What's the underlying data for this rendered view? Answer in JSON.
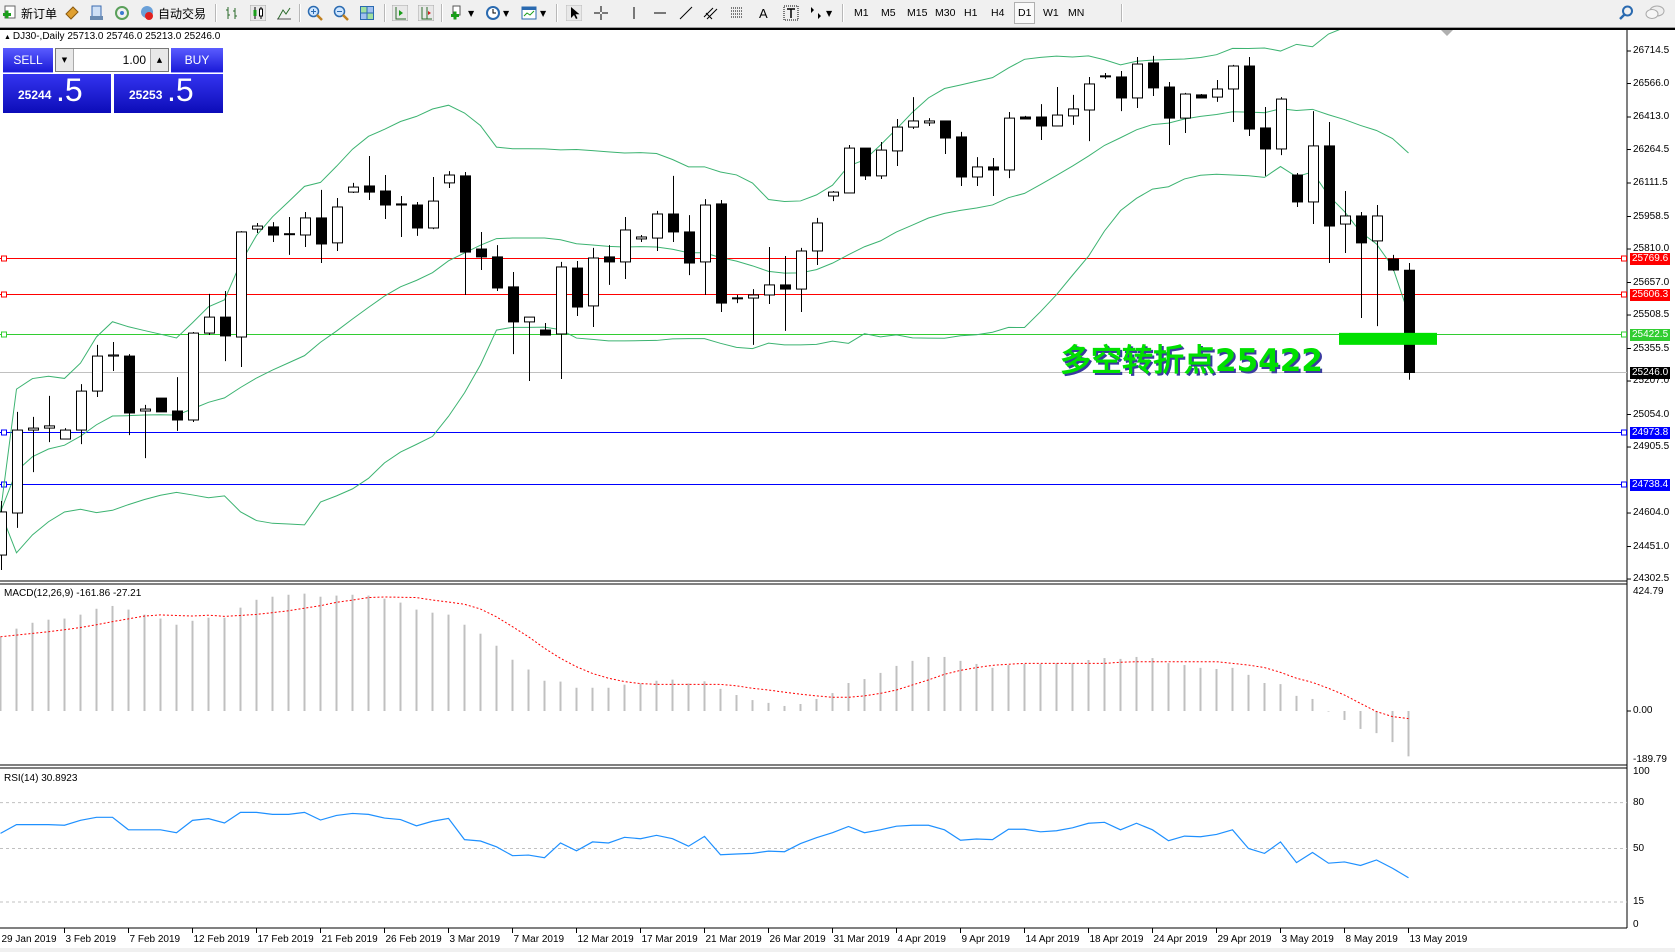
{
  "toolbar": {
    "new_order_label": "新订单",
    "auto_trading_label": "自动交易",
    "timeframes": [
      "M1",
      "M5",
      "M15",
      "M30",
      "H1",
      "H4",
      "D1",
      "W1",
      "MN"
    ],
    "active_timeframe": "D1"
  },
  "chart_header": {
    "symbol_info": "DJ30-,Daily  25713.0 25746.0 25213.0 25246.0"
  },
  "trade_panel": {
    "sell_label": "SELL",
    "buy_label": "BUY",
    "lot_value": "1.00",
    "sell_price_main": "25244",
    "sell_price_big": ".5",
    "buy_price_main": "25253",
    "buy_price_big": ".5"
  },
  "annotation": {
    "text": "多空转折点25422",
    "color": "#00e000",
    "marker_price": 25422.5
  },
  "chart_data": {
    "type": "candlestick",
    "symbol": "DJ30-",
    "timeframe": "Daily",
    "ylim": [
      24302.5,
      26714.5
    ],
    "price_ticks": [
      "26714.5",
      "26566.0",
      "26413.0",
      "26264.5",
      "26111.5",
      "25958.5",
      "25810.0",
      "25657.0",
      "25508.5",
      "25355.5",
      "25207.0",
      "25054.0",
      "24905.5",
      "24604.0",
      "24451.0",
      "24302.5"
    ],
    "date_labels": [
      "29 Jan 2019",
      "3 Feb 2019",
      "7 Feb 2019",
      "12 Feb 2019",
      "17 Feb 2019",
      "21 Feb 2019",
      "26 Feb 2019",
      "3 Mar 2019",
      "7 Mar 2019",
      "12 Mar 2019",
      "17 Mar 2019",
      "21 Mar 2019",
      "26 Mar 2019",
      "31 Mar 2019",
      "4 Apr 2019",
      "9 Apr 2019",
      "14 Apr 2019",
      "18 Apr 2019",
      "24 Apr 2019",
      "29 Apr 2019",
      "3 May 2019",
      "8 May 2019",
      "13 May 2019"
    ],
    "date_label_every_n_bars": 4,
    "ohlc_fields": [
      "open",
      "high",
      "low",
      "close"
    ],
    "ohlc": [
      [
        24412,
        24659,
        24344,
        24609
      ],
      [
        24604,
        25066,
        24536,
        24983
      ],
      [
        24983,
        25043,
        24791,
        24992
      ],
      [
        24992,
        25139,
        24928,
        25002
      ],
      [
        24942,
        24992,
        24942,
        24983
      ],
      [
        24983,
        25193,
        24919,
        25161
      ],
      [
        25161,
        25372,
        25134,
        25321
      ],
      [
        25321,
        25385,
        25253,
        25326
      ],
      [
        25321,
        25330,
        24960,
        25061
      ],
      [
        25070,
        25098,
        24855,
        25079
      ],
      [
        25129,
        25129,
        25066,
        25066
      ],
      [
        25070,
        25225,
        24979,
        25029
      ],
      [
        25029,
        25431,
        25020,
        25426
      ],
      [
        25426,
        25605,
        25417,
        25499
      ],
      [
        25499,
        25618,
        25298,
        25413
      ],
      [
        25408,
        25892,
        25271,
        25888
      ],
      [
        25901,
        25929,
        25883,
        25915
      ],
      [
        25911,
        25933,
        25842,
        25874
      ],
      [
        25879,
        25956,
        25783,
        25880
      ],
      [
        25874,
        25979,
        25819,
        25952
      ],
      [
        25952,
        26080,
        25746,
        25833
      ],
      [
        25838,
        26043,
        25801,
        26002
      ],
      [
        26070,
        26112,
        26066,
        26093
      ],
      [
        26098,
        26235,
        26034,
        26070
      ],
      [
        26075,
        26148,
        25947,
        26011
      ],
      [
        26016,
        26052,
        25865,
        26011
      ],
      [
        26011,
        26025,
        25870,
        25906
      ],
      [
        25906,
        26139,
        25901,
        26029
      ],
      [
        26112,
        26166,
        26089,
        26148
      ],
      [
        26144,
        26162,
        25600,
        25796
      ],
      [
        25810,
        25888,
        25714,
        25774
      ],
      [
        25774,
        25828,
        25618,
        25632
      ],
      [
        25637,
        25705,
        25330,
        25477
      ],
      [
        25477,
        25499,
        25207,
        25499
      ],
      [
        25440,
        25472,
        25417,
        25417
      ],
      [
        25422,
        25751,
        25216,
        25728
      ],
      [
        25723,
        25755,
        25504,
        25545
      ],
      [
        25550,
        25815,
        25454,
        25769
      ],
      [
        25774,
        25828,
        25646,
        25751
      ],
      [
        25751,
        25956,
        25673,
        25897
      ],
      [
        25856,
        25874,
        25842,
        25865
      ],
      [
        25860,
        25984,
        25801,
        25970
      ],
      [
        25970,
        26144,
        25842,
        25888
      ],
      [
        25888,
        25965,
        25691,
        25746
      ],
      [
        25751,
        26038,
        25600,
        26011
      ],
      [
        26016,
        26034,
        25522,
        25563
      ],
      [
        25586,
        25600,
        25563,
        25587
      ],
      [
        25586,
        25627,
        25372,
        25600
      ],
      [
        25600,
        25819,
        25559,
        25646
      ],
      [
        25646,
        25778,
        25436,
        25627
      ],
      [
        25627,
        25815,
        25522,
        25801
      ],
      [
        25801,
        25952,
        25737,
        25929
      ],
      [
        26052,
        26075,
        26029,
        26070
      ],
      [
        26066,
        26285,
        26066,
        26271
      ],
      [
        26271,
        26271,
        26125,
        26144
      ],
      [
        26144,
        26299,
        26130,
        26262
      ],
      [
        26258,
        26404,
        26189,
        26367
      ],
      [
        26367,
        26504,
        26358,
        26395
      ],
      [
        26386,
        26408,
        26372,
        26395
      ],
      [
        26395,
        26395,
        26244,
        26317
      ],
      [
        26322,
        26345,
        26098,
        26139
      ],
      [
        26139,
        26230,
        26098,
        26185
      ],
      [
        26185,
        26226,
        26052,
        26171
      ],
      [
        26171,
        26436,
        26134,
        26408
      ],
      [
        26413,
        26418,
        26404,
        26404
      ],
      [
        26413,
        26472,
        26308,
        26372
      ],
      [
        26372,
        26550,
        26372,
        26422
      ],
      [
        26418,
        26514,
        26377,
        26450
      ],
      [
        26445,
        26596,
        26303,
        26564
      ],
      [
        26600,
        26614,
        26587,
        26601
      ],
      [
        26596,
        26623,
        26440,
        26500
      ],
      [
        26500,
        26687,
        26454,
        26655
      ],
      [
        26660,
        26692,
        26509,
        26546
      ],
      [
        26550,
        26573,
        26285,
        26408
      ],
      [
        26408,
        26523,
        26340,
        26518
      ],
      [
        26514,
        26518,
        26500,
        26500
      ],
      [
        26504,
        26582,
        26482,
        26541
      ],
      [
        26541,
        26651,
        26390,
        26646
      ],
      [
        26646,
        26687,
        26326,
        26358
      ],
      [
        26363,
        26459,
        26144,
        26267
      ],
      [
        26267,
        26504,
        26239,
        26495
      ],
      [
        26148,
        26157,
        26002,
        26025
      ],
      [
        26025,
        26440,
        25924,
        26281
      ],
      [
        26281,
        26390,
        25746,
        25915
      ],
      [
        25924,
        26075,
        25792,
        25961
      ],
      [
        25961,
        25979,
        25495,
        25838
      ],
      [
        25847,
        26011,
        25458,
        25961
      ],
      [
        25764,
        25783,
        25710,
        25714
      ],
      [
        25713,
        25746,
        25213,
        25246
      ]
    ],
    "bollinger": {
      "period": 20,
      "deviation": 2,
      "color": "#3cb371"
    },
    "hlines": [
      {
        "price": 25769.6,
        "label": "25769.6",
        "color": "#ff0000"
      },
      {
        "price": 25606.3,
        "label": "25606.3",
        "color": "#ff0000"
      },
      {
        "price": 25422.5,
        "label": "25422.5",
        "color": "#32cd32"
      },
      {
        "price": 25246.0,
        "label": "25246.0",
        "color": "#c0c0c0",
        "tag_color": "#000000"
      },
      {
        "price": 24973.8,
        "label": "24973.8",
        "color": "#0000ff"
      },
      {
        "price": 24738.4,
        "label": "24738.4",
        "color": "#0000ff"
      }
    ],
    "macd": {
      "title": "MACD(12,26,9) -161.86 -27.21",
      "axis_labels": [
        {
          "value": 424.79,
          "text": "424.79"
        },
        {
          "value": 0,
          "text": "0.00"
        },
        {
          "value": -189.79,
          "text": "-189.79"
        }
      ],
      "histogram_color": "#c0c0c0",
      "signal_color": "#ff0000",
      "main": [
        265,
        294,
        315,
        326,
        330,
        344,
        365,
        375,
        362,
        344,
        330,
        308,
        322,
        333,
        333,
        369,
        397,
        408,
        415,
        419,
        408,
        412,
        415,
        412,
        401,
        387,
        362,
        351,
        344,
        308,
        276,
        233,
        183,
        148,
        108,
        105,
        83,
        83,
        83,
        94,
        98,
        108,
        112,
        98,
        106,
        79,
        57,
        39,
        29,
        18,
        25,
        43,
        64,
        100,
        114,
        136,
        161,
        179,
        193,
        193,
        179,
        168,
        154,
        164,
        168,
        168,
        171,
        171,
        182,
        189,
        186,
        193,
        189,
        171,
        164,
        154,
        150,
        154,
        129,
        100,
        96,
        54,
        43,
        -2,
        -32,
        -64,
        -79,
        -111,
        -161.86
      ],
      "signal": [
        265,
        271,
        277,
        283,
        290,
        298,
        308,
        319,
        329,
        339,
        343,
        341,
        339,
        342,
        338,
        341,
        345,
        351,
        358,
        367,
        376,
        388,
        396,
        405,
        407,
        406,
        405,
        396,
        389,
        381,
        364,
        336,
        301,
        265,
        224,
        188,
        158,
        134,
        117,
        105,
        98,
        95,
        95,
        95,
        95,
        95,
        90,
        81,
        75,
        67,
        60,
        54,
        49,
        49,
        54,
        63,
        75,
        93,
        111,
        131,
        145,
        155,
        163,
        167,
        170,
        170,
        170,
        170,
        170,
        170,
        174,
        176,
        176,
        176,
        176,
        176,
        176,
        170,
        164,
        155,
        138,
        117,
        102,
        81,
        57,
        27,
        -2,
        -20,
        -27.21
      ]
    },
    "rsi": {
      "title": "RSI(14) 30.8923",
      "color": "#1e90ff",
      "levels": [
        80,
        50,
        15
      ],
      "axis_labels": [
        {
          "value": 100,
          "text": "100"
        },
        {
          "value": 80,
          "text": "80"
        },
        {
          "value": 50,
          "text": "50"
        },
        {
          "value": 15,
          "text": "15"
        },
        {
          "value": 0,
          "text": "0"
        }
      ],
      "values": [
        59.9,
        65.6,
        65.6,
        65.6,
        65.2,
        68.4,
        70.4,
        70.4,
        62.2,
        62.2,
        62.2,
        60.3,
        68.4,
        69.5,
        66.7,
        73.6,
        73.6,
        72.3,
        72.3,
        73.6,
        68.6,
        71.6,
        72.9,
        72.3,
        69.9,
        68.9,
        64.8,
        67.8,
        69.7,
        55.8,
        54.9,
        51.1,
        45.3,
        45.7,
        44.0,
        53.6,
        48.5,
        54.3,
        53.6,
        57.3,
        56.4,
        58.6,
        56.4,
        51.5,
        57.9,
        45.9,
        46.4,
        46.8,
        48.3,
        47.9,
        53.2,
        57.1,
        60.3,
        64.4,
        60.3,
        62.2,
        64.6,
        65.2,
        65.2,
        62.2,
        55.4,
        56.2,
        55.8,
        62.6,
        62.6,
        60.9,
        61.6,
        63.5,
        66.5,
        67.1,
        62.2,
        66.5,
        62.2,
        55.1,
        58.1,
        57.7,
        59.2,
        62.2,
        50.0,
        46.8,
        54.3,
        40.8,
        47.4,
        40.4,
        41.2,
        38.9,
        42.5,
        37.1,
        30.89
      ]
    }
  }
}
